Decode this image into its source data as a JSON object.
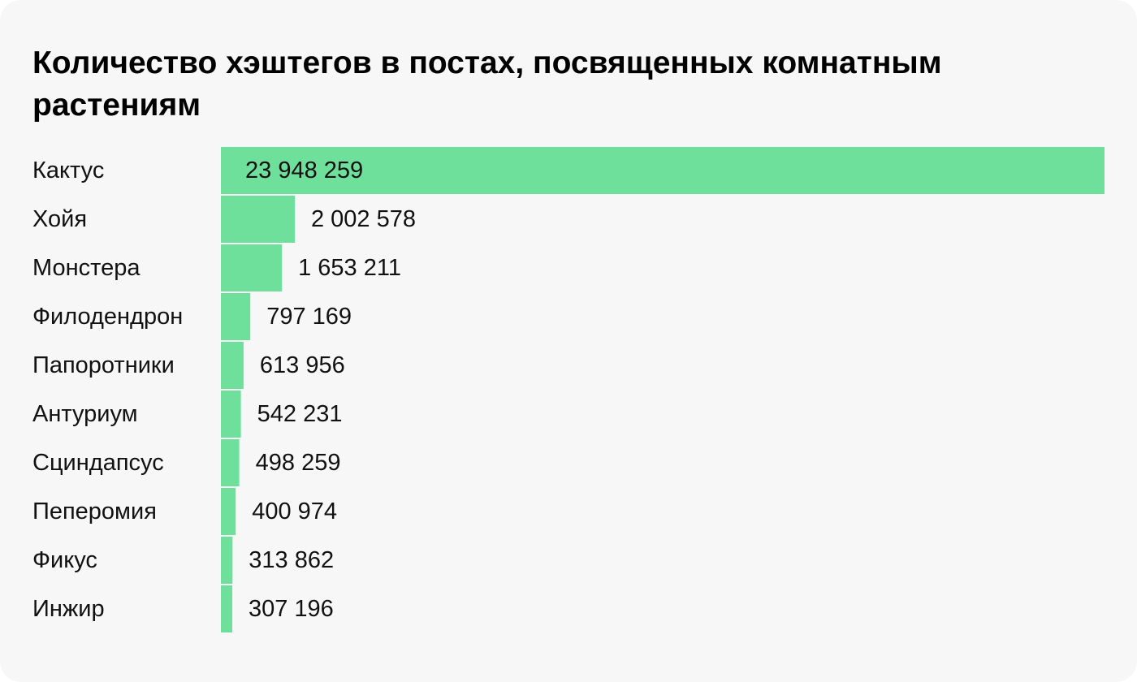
{
  "chart_data": {
    "type": "bar",
    "orientation": "horizontal",
    "title": "Количество хэштегов в постах, посвященных комнатным растениям",
    "categories": [
      "Кактус",
      "Хойя",
      "Монстера",
      "Филодендрон",
      "Папоротники",
      "Антуриум",
      "Сциндапсус",
      "Пеперомия",
      "Фикус",
      "Инжир"
    ],
    "values": [
      23948259,
      2002578,
      1653211,
      797169,
      613956,
      542231,
      498259,
      400974,
      313862,
      307196
    ],
    "value_labels": [
      "23 948 259",
      "2 002 578",
      "1 653 211",
      "797 169",
      "613 956",
      "542 231",
      "498 259",
      "400 974",
      "313 862",
      "307 196"
    ],
    "xlim": [
      0,
      23948259
    ],
    "grid": false,
    "legend": "none",
    "bar_color": "#6ee09c",
    "background_color": "#f7f7f7",
    "text_color": "#111111"
  }
}
